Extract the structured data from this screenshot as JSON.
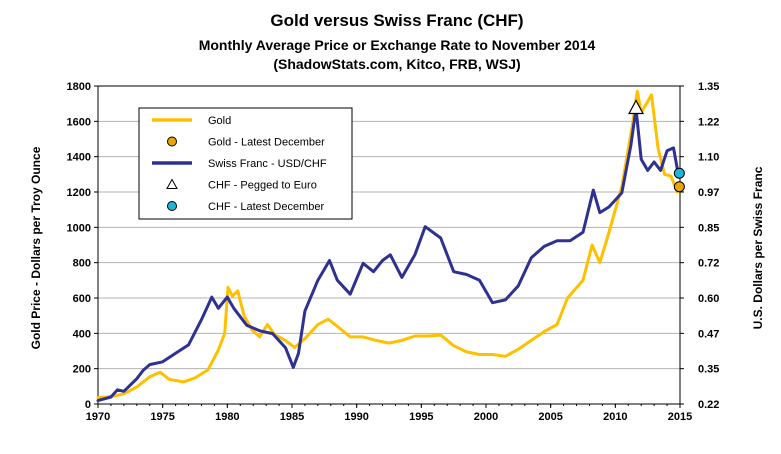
{
  "chart_data": {
    "type": "line",
    "title": "Gold versus Swiss Franc (CHF)",
    "subtitle": "Monthly Average Price or Exchange Rate to November 2014",
    "source": "(ShadowStats.com, Kitco, FRB, WSJ)",
    "xlabel": "",
    "ylabel_left": "Gold Price - Dollars per Troy Ounce",
    "ylabel_right": "U.S. Dollars per Swiss Franc",
    "xlim": [
      1970,
      2015
    ],
    "ylim_left": [
      0,
      1800
    ],
    "ylim_right": [
      0.22,
      1.35
    ],
    "x_ticks": [
      "1970",
      "1975",
      "1980",
      "1985",
      "1990",
      "1995",
      "2000",
      "2005",
      "2010",
      "2015"
    ],
    "y_left_ticks": [
      "0",
      "200",
      "400",
      "600",
      "800",
      "1000",
      "1200",
      "1400",
      "1600",
      "1800"
    ],
    "y_right_ticks": [
      "0.22",
      "0.35",
      "0.47",
      "0.60",
      "0.72",
      "0.85",
      "0.97",
      "1.10",
      "1.22",
      "1.35"
    ],
    "grid": true,
    "legend_position": "top-left",
    "legend": [
      {
        "label": "Gold",
        "kind": "line",
        "color": "#FFC000"
      },
      {
        "label": "Gold - Latest December",
        "kind": "circle",
        "color": "#E8A600"
      },
      {
        "label": "Swiss Franc - USD/CHF",
        "kind": "line",
        "color": "#2E3192"
      },
      {
        "label": "CHF - Pegged to Euro",
        "kind": "triangle",
        "color": "#FFFFFF"
      },
      {
        "label": "CHF - Latest December",
        "kind": "circle",
        "color": "#1FB5D8"
      }
    ],
    "series": [
      {
        "name": "Gold",
        "axis": "left",
        "color": "#FFC000",
        "x": [
          1970,
          1971,
          1972,
          1973,
          1974,
          1974.8,
          1975.5,
          1976.6,
          1977.5,
          1978.5,
          1979.3,
          1979.8,
          1980.05,
          1980.4,
          1980.8,
          1981.3,
          1981.9,
          1982.5,
          1983.1,
          1983.7,
          1984.5,
          1985.2,
          1986,
          1987,
          1987.8,
          1988.5,
          1989.5,
          1990.5,
          1991.5,
          1992.5,
          1993.5,
          1994.5,
          1995.5,
          1996.5,
          1997.5,
          1998.5,
          1999.5,
          2000.5,
          2001.5,
          2002.5,
          2003.5,
          2004.5,
          2005.5,
          2006.3,
          2007.5,
          2008.2,
          2008.8,
          2009.5,
          2010.5,
          2011.3,
          2011.7,
          2012,
          2012.4,
          2012.8,
          2013.3,
          2013.8,
          2014.3,
          2014.8
        ],
        "y": [
          36,
          41,
          58,
          97,
          154,
          180,
          140,
          125,
          148,
          193,
          305,
          400,
          660,
          610,
          640,
          500,
          420,
          380,
          450,
          390,
          360,
          320,
          370,
          450,
          480,
          440,
          380,
          380,
          360,
          345,
          360,
          385,
          385,
          390,
          330,
          295,
          280,
          280,
          270,
          310,
          360,
          410,
          450,
          600,
          700,
          900,
          800,
          970,
          1230,
          1570,
          1770,
          1650,
          1700,
          1750,
          1450,
          1300,
          1290,
          1200
        ]
      },
      {
        "name": "Swiss Franc - USD/CHF",
        "axis": "right",
        "color": "#2E3192",
        "x": [
          1970,
          1971,
          1971.5,
          1972,
          1973,
          1973.5,
          1974,
          1975,
          1976,
          1977,
          1978,
          1978.8,
          1979.3,
          1980,
          1980.5,
          1981.5,
          1982.5,
          1983.5,
          1984.5,
          1985.1,
          1985.5,
          1986,
          1987,
          1987.9,
          1988.5,
          1989.5,
          1990.5,
          1991.3,
          1992,
          1992.6,
          1993.5,
          1994.5,
          1995.3,
          1996.5,
          1997.5,
          1998.5,
          1999.5,
          2000.5,
          2001.5,
          2002.5,
          2003.5,
          2004.5,
          2005.5,
          2006.5,
          2007.5,
          2008.3,
          2008.8,
          2009.5,
          2010.5,
          2011.2,
          2011.6,
          2012,
          2012.5,
          2013,
          2013.5,
          2014,
          2014.5,
          2014.85
        ],
        "y": [
          0.232,
          0.245,
          0.27,
          0.265,
          0.31,
          0.34,
          0.36,
          0.37,
          0.4,
          0.43,
          0.52,
          0.6,
          0.56,
          0.6,
          0.56,
          0.5,
          0.48,
          0.47,
          0.42,
          0.35,
          0.4,
          0.55,
          0.66,
          0.73,
          0.66,
          0.61,
          0.72,
          0.69,
          0.73,
          0.75,
          0.67,
          0.75,
          0.85,
          0.81,
          0.69,
          0.68,
          0.66,
          0.58,
          0.59,
          0.64,
          0.74,
          0.78,
          0.8,
          0.8,
          0.83,
          0.98,
          0.9,
          0.92,
          0.97,
          1.14,
          1.27,
          1.09,
          1.05,
          1.08,
          1.05,
          1.12,
          1.13,
          1.04
        ]
      }
    ],
    "markers": [
      {
        "label": "Gold - Latest December",
        "axis": "left",
        "x": 2014.95,
        "y": 1230
      },
      {
        "label": "CHF - Pegged to Euro",
        "axis": "right",
        "x": 2011.6,
        "y": 1.27
      },
      {
        "label": "CHF - Latest December",
        "axis": "right",
        "x": 2014.95,
        "y": 1.04
      }
    ]
  }
}
